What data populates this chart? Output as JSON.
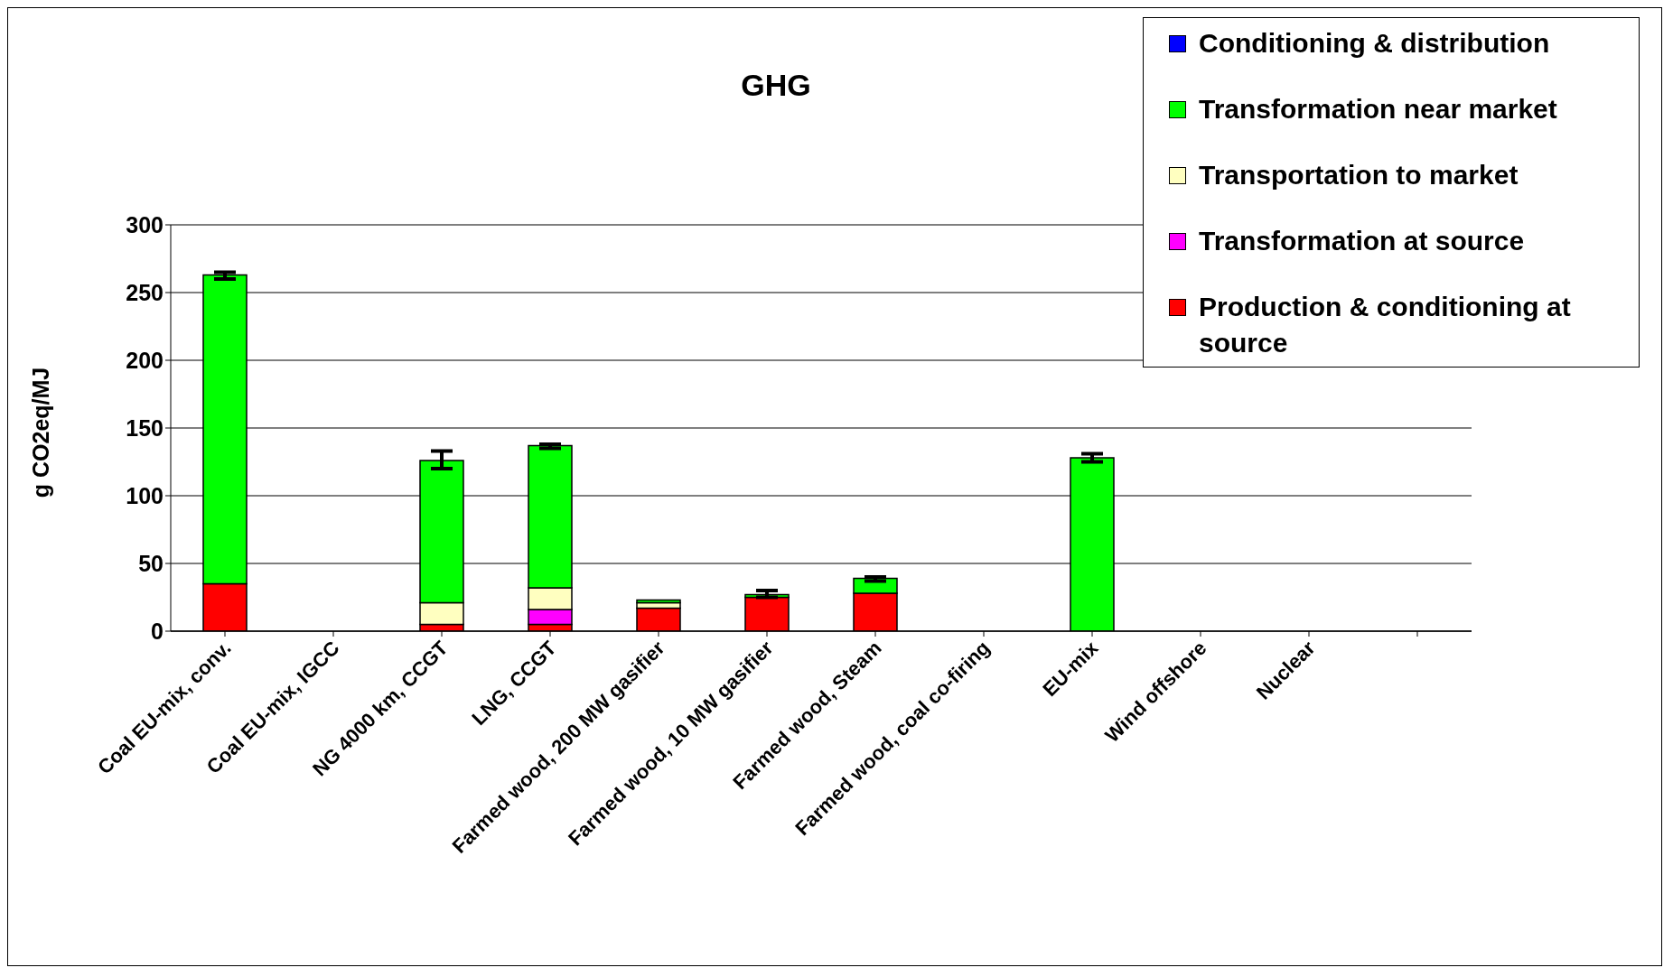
{
  "chart_data": {
    "type": "bar",
    "title": "GHG",
    "ylabel": "g CO2eq/MJ",
    "stacked": true,
    "categories": [
      "Coal EU-mix, conv.",
      "Coal EU-mix, IGCC",
      "NG 4000 km, CCGT",
      "LNG, CCGT",
      "Farmed wood, 200 MW gasifier",
      "Farmed wood, 10 MW gasifier",
      "Farmed wood, Steam",
      "Farmed wood, coal co-firing",
      "EU-mix",
      "Wind offshore",
      "Nuclear",
      null
    ],
    "series": [
      {
        "name": "Production & conditioning at source",
        "color": "#ff0000",
        "values": [
          35,
          0,
          5,
          5,
          17,
          25,
          28,
          0,
          0,
          0,
          0,
          null
        ]
      },
      {
        "name": "Transformation at source",
        "color": "#ff00ff",
        "values": [
          0,
          0,
          0,
          11,
          0,
          0,
          0,
          0,
          0,
          0,
          0,
          null
        ]
      },
      {
        "name": "Transportation to market",
        "color": "#ffffc0",
        "values": [
          0,
          0,
          16,
          16,
          4,
          0,
          0,
          0,
          0,
          0,
          0,
          null
        ]
      },
      {
        "name": "Transformation near market",
        "color": "#00ff00",
        "values": [
          228,
          0,
          105,
          105,
          2,
          2,
          11,
          0,
          128,
          0,
          0,
          null
        ],
        "errors": [
          [
            260,
            265
          ],
          null,
          [
            120,
            133
          ],
          [
            135,
            138
          ],
          null,
          [
            25,
            30
          ],
          [
            37,
            40
          ],
          null,
          [
            125,
            131
          ],
          null,
          null,
          null
        ]
      },
      {
        "name": "Conditioning & distribution",
        "color": "#0000ff",
        "values": [
          0,
          0,
          0,
          0,
          0,
          0,
          0,
          0,
          0,
          0,
          0,
          null
        ]
      }
    ],
    "ylim": [
      0,
      300
    ],
    "yticks": [
      0,
      50,
      100,
      150,
      200,
      250,
      300
    ],
    "grid": "y",
    "legend": "top right"
  }
}
